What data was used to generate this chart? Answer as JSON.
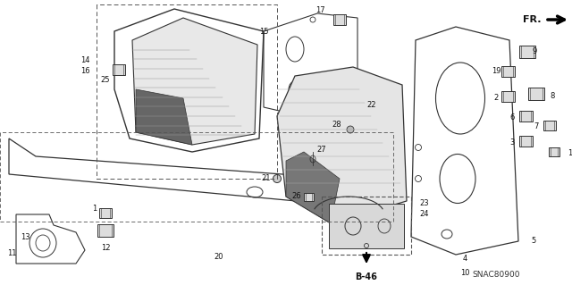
{
  "bg_color": "#ffffff",
  "diagram_code": "SNAC80900",
  "fr_label": "FR.",
  "b46_label": "B-46",
  "line_color": "#333333",
  "text_color": "#111111",
  "dashed_color": "#555555",
  "gray_fill": "#cccccc",
  "dark_fill": "#888888"
}
